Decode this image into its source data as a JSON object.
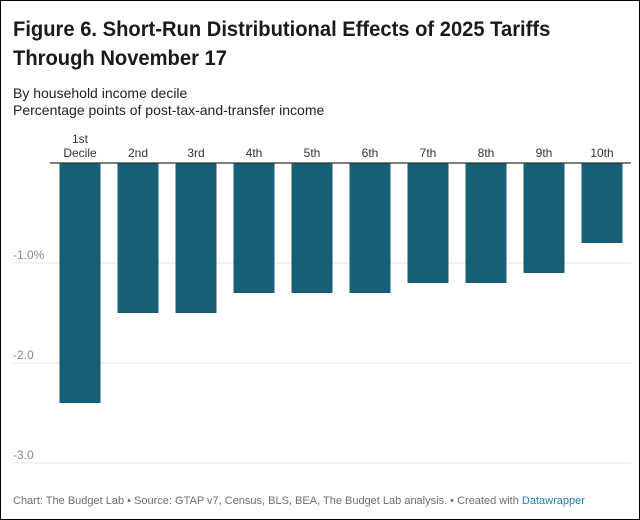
{
  "title": "Figure 6. Short-Run Distributional Effects of 2025 Tariffs Through November 17",
  "subtitle_line1": "By household income decile",
  "subtitle_line2": "Percentage points of post-tax-and-transfer income",
  "footer": {
    "text": "Chart: The Budget Lab • Source: GTAP v7, Census, BLS, BEA, The Budget Lab analysis. • Created with ",
    "link": "Datawrapper"
  },
  "colors": {
    "bar": "#175e77",
    "grid": "#e6e6e6",
    "axis": "#333333",
    "tick_text": "#888888",
    "category_text": "#333333"
  },
  "chart_data": {
    "type": "bar",
    "title": "Figure 6. Short-Run Distributional Effects of 2025 Tariffs Through November 17",
    "xlabel": "By household income decile",
    "ylabel": "Percentage points of post-tax-and-transfer income",
    "categories": [
      [
        "1st",
        "Decile"
      ],
      [
        "2nd"
      ],
      [
        "3rd"
      ],
      [
        "4th"
      ],
      [
        "5th"
      ],
      [
        "6th"
      ],
      [
        "7th"
      ],
      [
        "8th"
      ],
      [
        "9th"
      ],
      [
        "10th"
      ]
    ],
    "values": [
      -2.4,
      -1.5,
      -1.5,
      -1.3,
      -1.3,
      -1.3,
      -1.2,
      -1.2,
      -1.1,
      -0.8
    ],
    "ylim": [
      -3.0,
      0
    ],
    "yticks": [
      {
        "value": -1.0,
        "label": "-1.0%"
      },
      {
        "value": -2.0,
        "label": "-2.0"
      },
      {
        "value": -3.0,
        "label": "-3.0"
      }
    ],
    "grid": true,
    "legend": "none"
  }
}
